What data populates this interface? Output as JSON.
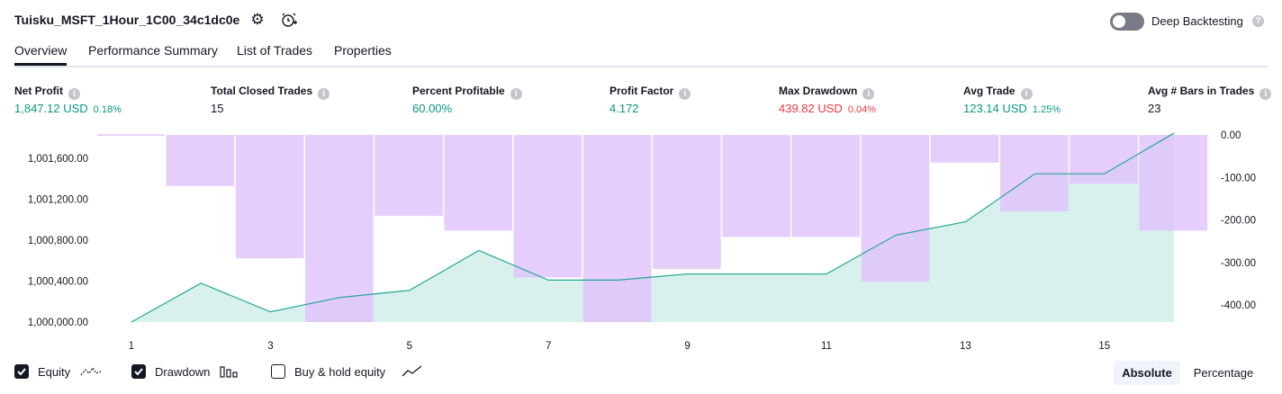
{
  "header": {
    "strategy_name": "Tuisku_MSFT_1Hour_1C00_34c1dc0e",
    "deep_backtesting_label": "Deep Backtesting",
    "deep_backtesting_enabled": false
  },
  "tabs": [
    {
      "label": "Overview",
      "active": true
    },
    {
      "label": "Performance Summary",
      "active": false
    },
    {
      "label": "List of Trades",
      "active": false
    },
    {
      "label": "Properties",
      "active": false
    }
  ],
  "stats": [
    {
      "label": "Net Profit",
      "value": "1,847.12 USD",
      "pct": "0.18%",
      "color": "#089981"
    },
    {
      "label": "Total Closed Trades",
      "value": "15",
      "pct": "",
      "color": "#131722"
    },
    {
      "label": "Percent Profitable",
      "value": "60.00%",
      "pct": "",
      "color": "#089981"
    },
    {
      "label": "Profit Factor",
      "value": "4.172",
      "pct": "",
      "color": "#089981"
    },
    {
      "label": "Max Drawdown",
      "value": "439.82 USD",
      "pct": "0.04%",
      "color": "#f23645"
    },
    {
      "label": "Avg Trade",
      "value": "123.14 USD",
      "pct": "1.25%",
      "color": "#089981"
    },
    {
      "label": "Avg # Bars in Trades",
      "value": "23",
      "pct": "",
      "color": "#131722"
    }
  ],
  "chart_data": {
    "type": "line+bar",
    "x": [
      1,
      2,
      3,
      4,
      5,
      6,
      7,
      8,
      9,
      10,
      11,
      12,
      13,
      14,
      15,
      16
    ],
    "x_tick_labels": [
      "1",
      "3",
      "5",
      "7",
      "9",
      "11",
      "13",
      "15"
    ],
    "equity": [
      1000000,
      1000380,
      1000100,
      1000240,
      1000310,
      1000700,
      1000410,
      1000410,
      1000470,
      1000470,
      1000470,
      1000850,
      1000980,
      1001450,
      1001450,
      1001847.12
    ],
    "drawdown": [
      0,
      -120,
      -290,
      -440,
      -190,
      -225,
      -335,
      -440,
      -315,
      -240,
      -240,
      -345,
      -65,
      -180,
      -115,
      -225
    ],
    "left_axis": {
      "ticks": [
        "1,000,000.00",
        "1,000,400.00",
        "1,000,800.00",
        "1,001,200.00",
        "1,001,600.00"
      ],
      "range": [
        1000000,
        1001830
      ]
    },
    "right_axis": {
      "ticks": [
        "0.00",
        "-100.00",
        "-200.00",
        "-300.00",
        "-400.00"
      ],
      "range": [
        -440,
        0
      ]
    },
    "colors": {
      "equity_line": "#26a69a",
      "equity_fill": "#d8f1ec",
      "drawdown": "#e1c4fc",
      "overlap": "#b6b8eb"
    }
  },
  "legend": {
    "equity": {
      "label": "Equity",
      "checked": true
    },
    "drawdown": {
      "label": "Drawdown",
      "checked": true
    },
    "buy_hold": {
      "label": "Buy & hold equity",
      "checked": false
    }
  },
  "view_toggle": {
    "absolute": "Absolute",
    "percentage": "Percentage",
    "selected": "Absolute"
  }
}
